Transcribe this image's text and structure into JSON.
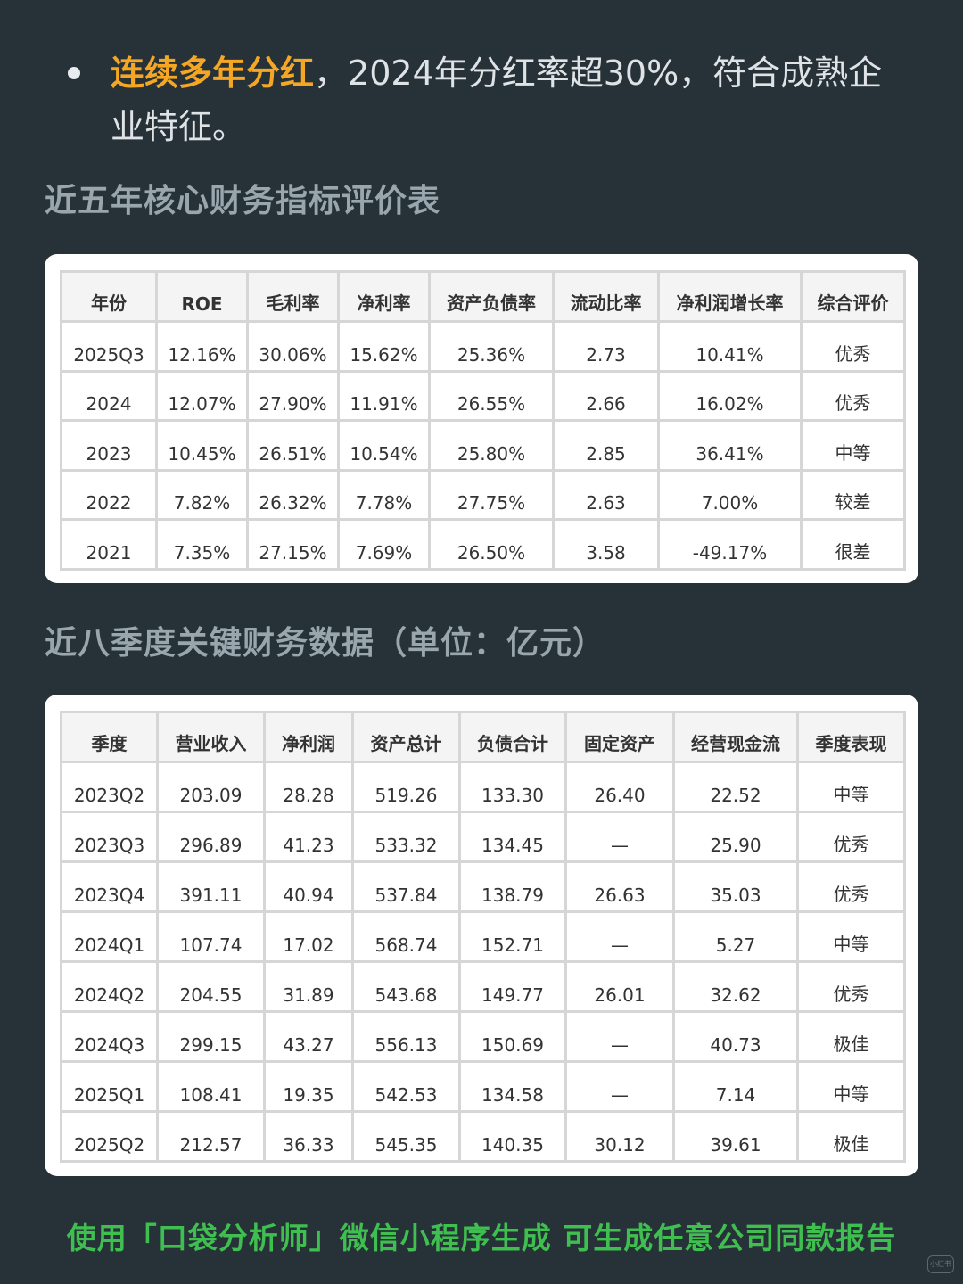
{
  "bullet": {
    "highlight": "连续多年分红",
    "rest": "，2024年分红率超30%，符合成熟企业特征。"
  },
  "section1": {
    "title": "近五年核心财务指标评价表",
    "headers": [
      "年份",
      "ROE",
      "毛利率",
      "净利率",
      "资产负债率",
      "流动比率",
      "净利润增长率",
      "综合评价"
    ],
    "rows": [
      [
        "2025Q3",
        "12.16%",
        "30.06%",
        "15.62%",
        "25.36%",
        "2.73",
        "10.41%",
        "优秀"
      ],
      [
        "2024",
        "12.07%",
        "27.90%",
        "11.91%",
        "26.55%",
        "2.66",
        "16.02%",
        "优秀"
      ],
      [
        "2023",
        "10.45%",
        "26.51%",
        "10.54%",
        "25.80%",
        "2.85",
        "36.41%",
        "中等"
      ],
      [
        "2022",
        "7.82%",
        "26.32%",
        "7.78%",
        "27.75%",
        "2.63",
        "7.00%",
        "较差"
      ],
      [
        "2021",
        "7.35%",
        "27.15%",
        "7.69%",
        "26.50%",
        "3.58",
        "-49.17%",
        "很差"
      ]
    ]
  },
  "section2": {
    "title": "近八季度关键财务数据（单位：亿元）",
    "headers": [
      "季度",
      "营业收入",
      "净利润",
      "资产总计",
      "负债合计",
      "固定资产",
      "经营现金流",
      "季度表现"
    ],
    "rows": [
      [
        "2023Q2",
        "203.09",
        "28.28",
        "519.26",
        "133.30",
        "26.40",
        "22.52",
        "中等"
      ],
      [
        "2023Q3",
        "296.89",
        "41.23",
        "533.32",
        "134.45",
        "—",
        "25.90",
        "优秀"
      ],
      [
        "2023Q4",
        "391.11",
        "40.94",
        "537.84",
        "138.79",
        "26.63",
        "35.03",
        "优秀"
      ],
      [
        "2024Q1",
        "107.74",
        "17.02",
        "568.74",
        "152.71",
        "—",
        "5.27",
        "中等"
      ],
      [
        "2024Q2",
        "204.55",
        "31.89",
        "543.68",
        "149.77",
        "26.01",
        "32.62",
        "优秀"
      ],
      [
        "2024Q3",
        "299.15",
        "43.27",
        "556.13",
        "150.69",
        "—",
        "40.73",
        "极佳"
      ],
      [
        "2025Q1",
        "108.41",
        "19.35",
        "542.53",
        "134.58",
        "—",
        "7.14",
        "中等"
      ],
      [
        "2025Q2",
        "212.57",
        "36.33",
        "545.35",
        "140.35",
        "30.12",
        "39.61",
        "极佳"
      ]
    ]
  },
  "footer": {
    "text": "使用「口袋分析师」微信小程序生成 可生成任意公司同款报告"
  },
  "watermark": {
    "text": "小红书"
  },
  "colors": {
    "background": "#263238",
    "highlight": "#f5a623",
    "footer": "#3fbf4f"
  }
}
